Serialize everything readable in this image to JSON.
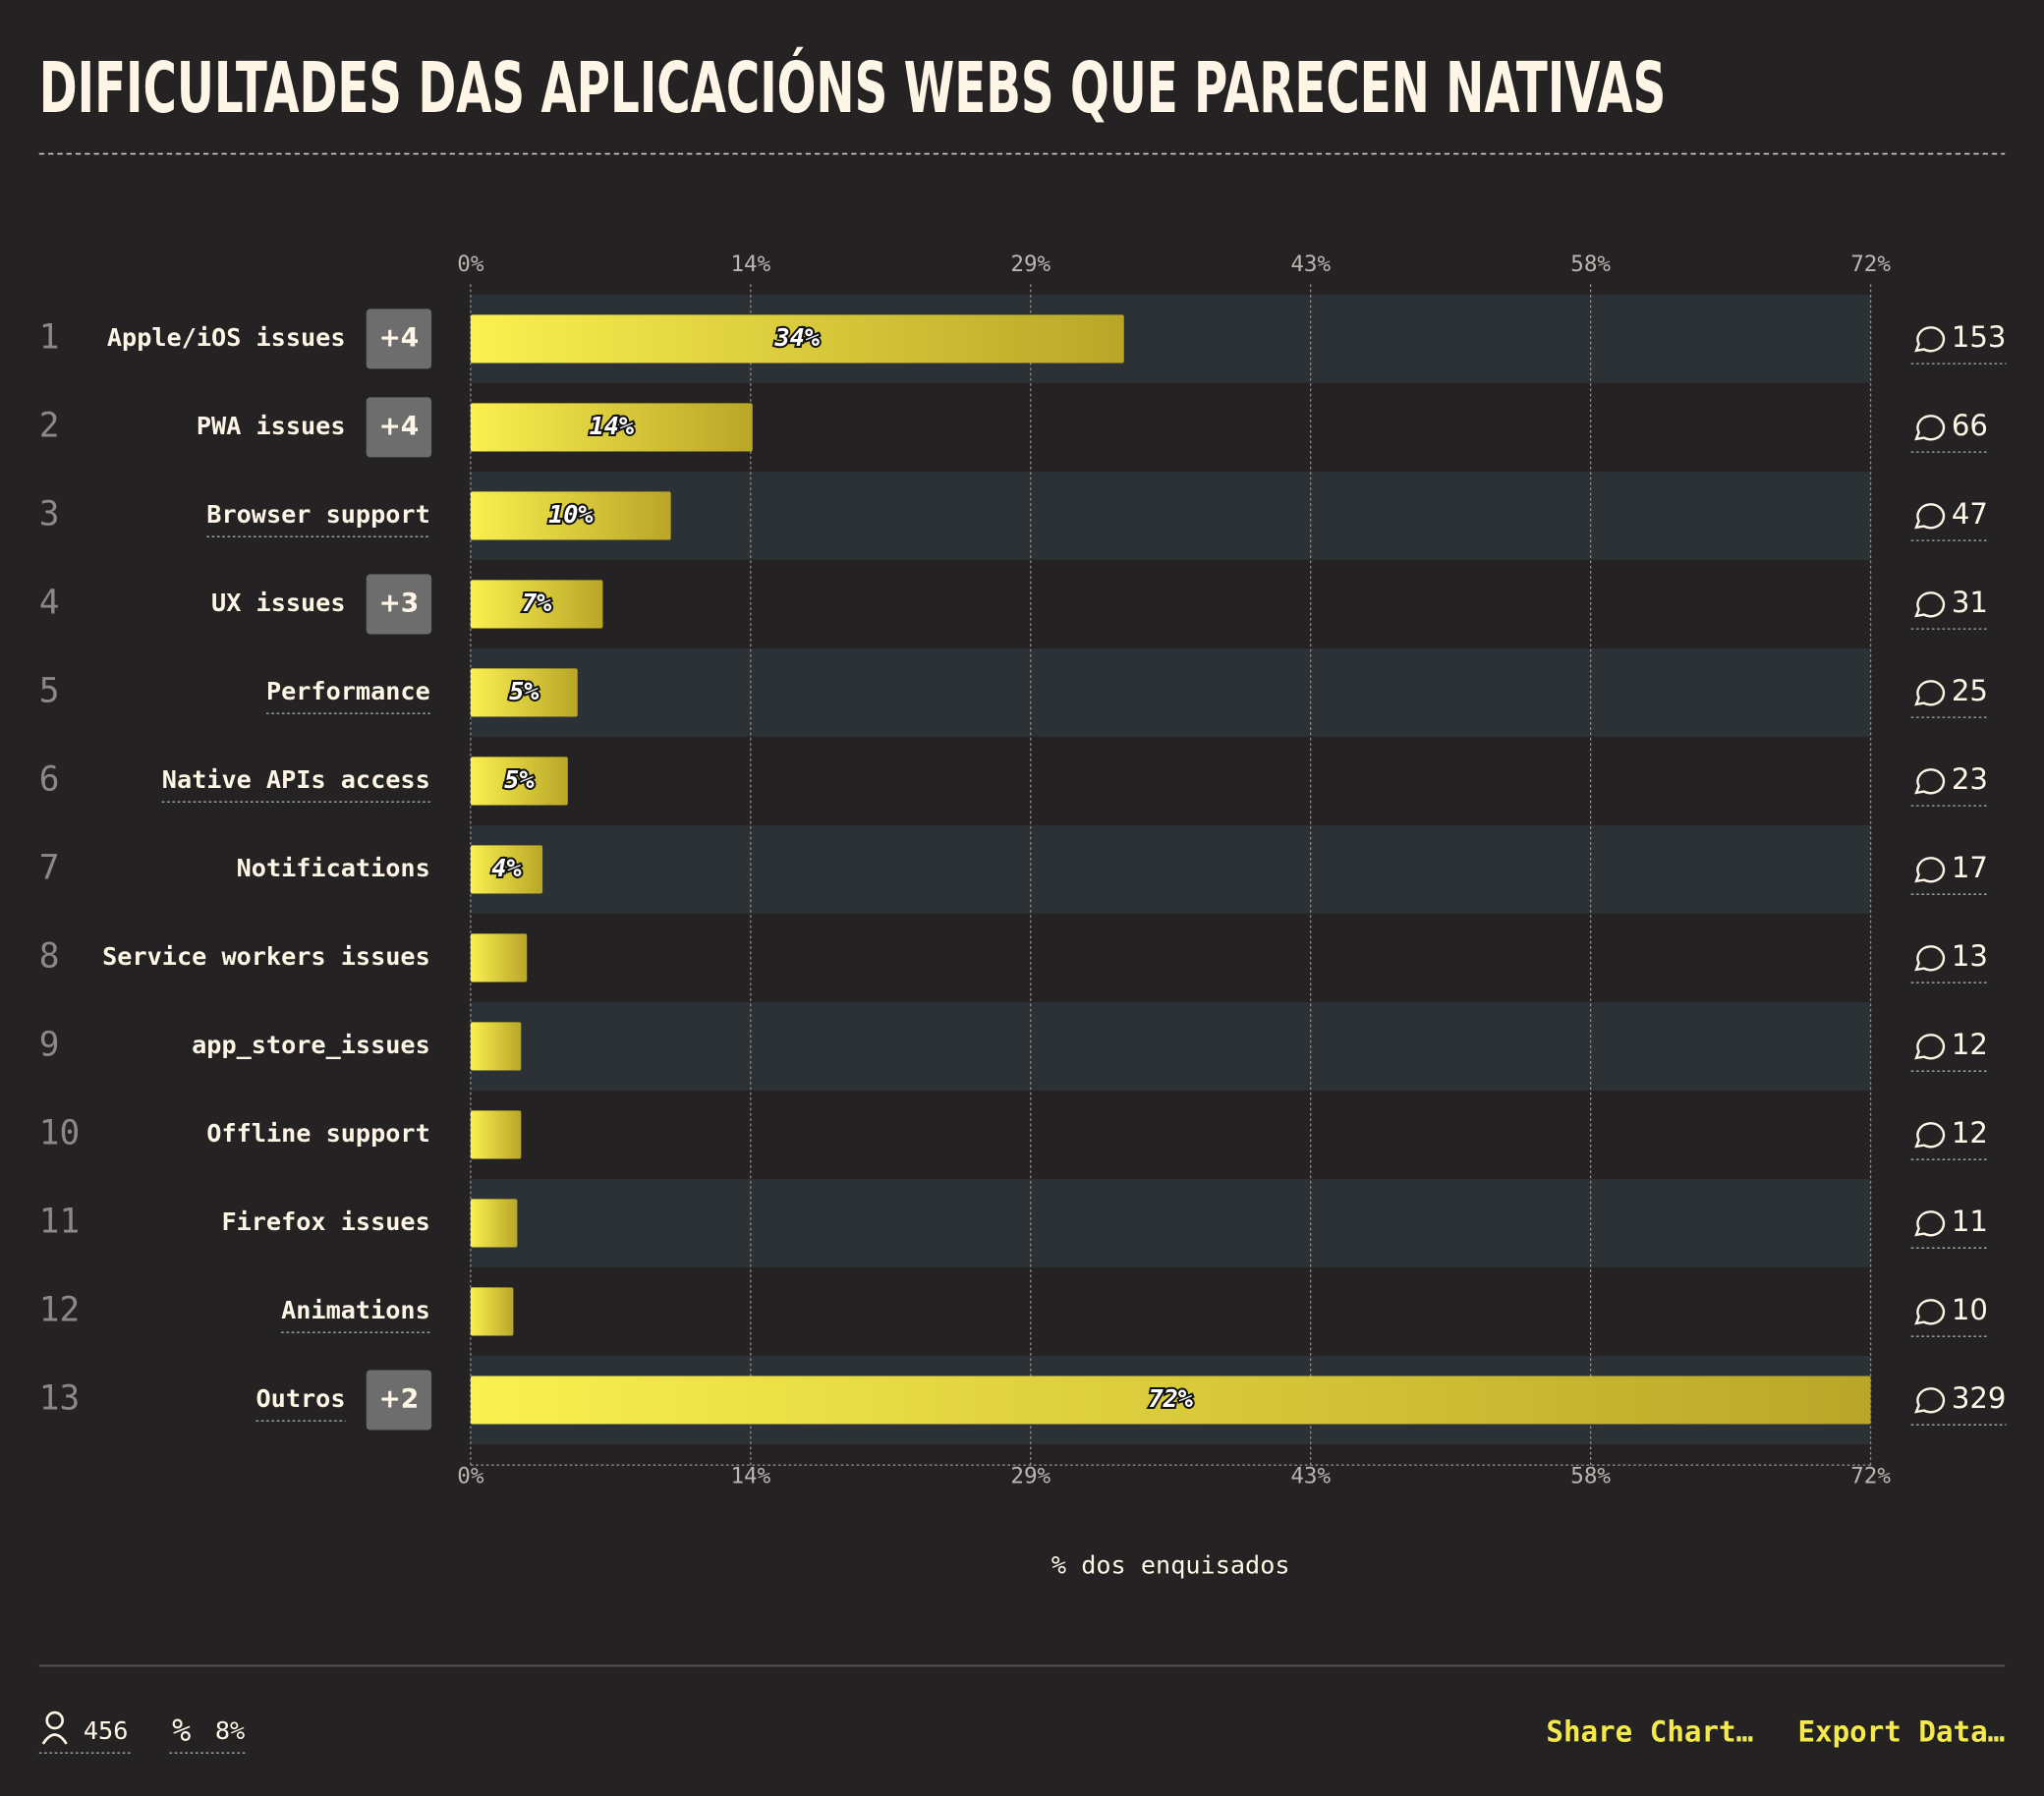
{
  "chart_data": {
    "type": "bar",
    "title": "DIFICULTADES DAS APLICACIÓNS WEBS QUE PARECEN NATIVAS",
    "ranks": [
      1,
      2,
      3,
      4,
      5,
      6,
      7,
      8,
      9,
      10,
      11,
      12,
      13
    ],
    "categories": [
      "Apple/iOS issues",
      "PWA issues",
      "Browser support",
      "UX issues",
      "Performance",
      "Native APIs access",
      "Notifications",
      "Service workers issues",
      "app_store_issues",
      "Offline support",
      "Firefox issues",
      "Animations",
      "Outros"
    ],
    "badges": [
      "+4",
      "+4",
      null,
      "+3",
      null,
      null,
      null,
      null,
      null,
      null,
      null,
      null,
      "+2"
    ],
    "values": [
      33.6,
      14.5,
      10.3,
      6.8,
      5.5,
      5.0,
      3.7,
      2.9,
      2.6,
      2.6,
      2.4,
      2.2,
      72
    ],
    "value_labels": [
      "34%",
      "14%",
      "10%",
      "7%",
      "5%",
      "5%",
      "4%",
      null,
      null,
      null,
      null,
      null,
      "72%"
    ],
    "comments": [
      153,
      66,
      47,
      31,
      25,
      23,
      17,
      13,
      12,
      12,
      11,
      10,
      329
    ],
    "xlim": [
      0,
      72
    ],
    "xticks": [
      {
        "value": 0,
        "label": "0%"
      },
      {
        "value": 14.4,
        "label": "14%"
      },
      {
        "value": 28.8,
        "label": "29%"
      },
      {
        "value": 43.2,
        "label": "43%"
      },
      {
        "value": 57.6,
        "label": "58%"
      },
      {
        "value": 72,
        "label": "72%"
      }
    ],
    "xlabel": "% dos enquisados",
    "color": "#f4e94b",
    "grid": true
  },
  "footer": {
    "respondents": 456,
    "percentage": "8%",
    "share": "Share Chart…",
    "export": "Export Data…"
  }
}
